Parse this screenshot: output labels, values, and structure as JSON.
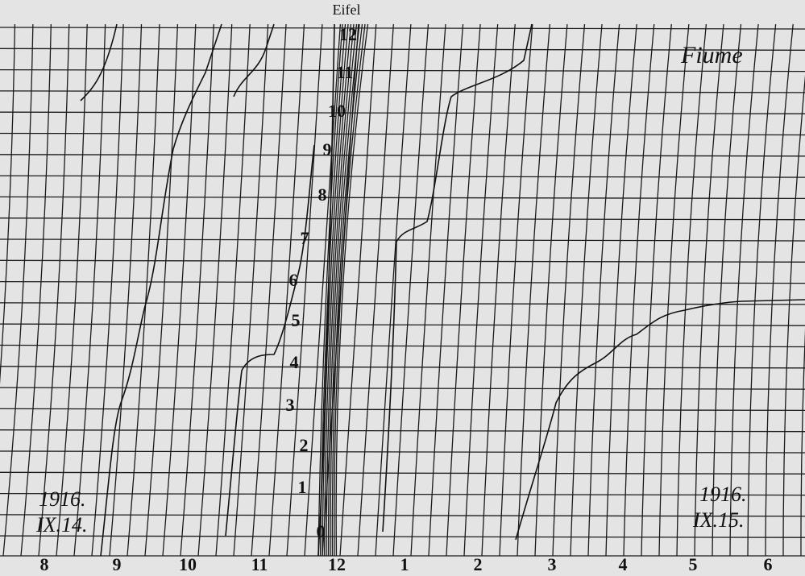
{
  "header": {
    "station_top": "Eifel",
    "station_right": "Fiume"
  },
  "dates": [
    {
      "year": "1916.",
      "day": "IX.14."
    },
    {
      "year": "1916.",
      "day": "IX.15."
    }
  ],
  "hour_labels": [
    "8",
    "9",
    "10",
    "11",
    "12",
    "1",
    "2",
    "3",
    "4",
    "5",
    "6"
  ],
  "scale_labels": [
    "0",
    "1",
    "2",
    "3",
    "4",
    "5",
    "6",
    "7",
    "8",
    "9",
    "10",
    "11",
    "12"
  ]
}
